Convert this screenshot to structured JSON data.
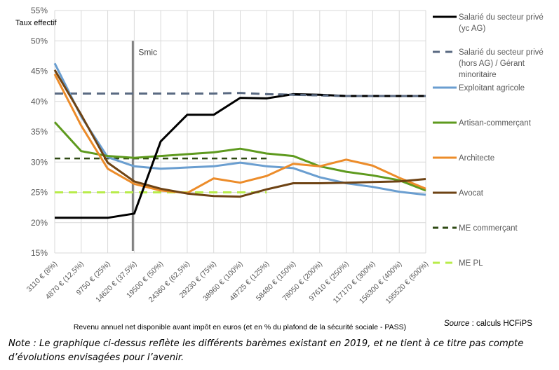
{
  "chart_data": {
    "type": "line",
    "title": "",
    "ylabel": "Taux effectif",
    "xlabel": "Revenu annuel net disponible avant impôt en euros (et en % du plafond de la sécurité sociale - PASS)",
    "ylim": [
      15,
      55
    ],
    "yticks": [
      15,
      20,
      25,
      30,
      35,
      40,
      45,
      50,
      55
    ],
    "ytick_labels": [
      "15%",
      "20%",
      "25%",
      "30%",
      "35%",
      "40%",
      "45%",
      "50%",
      "55%"
    ],
    "grid": true,
    "legend_position": "right",
    "categories": [
      "3110 € (8%)",
      "4870 € (12,5%)",
      "9750 € (25%)",
      "14620 € (37,5%)",
      "19500 € (50%)",
      "24360 € (62,5%)",
      "29230 € (75%)",
      "38960 € (100%)",
      "48725 € (125%)",
      "58480 € (150%)",
      "78050 € (200%)",
      "97610 € (250%)",
      "117170 € (300%)",
      "156300 € (400%)",
      "195520 € (500%)"
    ],
    "annotations": [
      {
        "label": "Smic",
        "category_index": 3,
        "from_value": 15,
        "to_value": 50,
        "color": "#808080"
      }
    ],
    "series": [
      {
        "name": "Salarié du secteur privé (yc AG)",
        "legend_lines": [
          "Salarié du secteur privé",
          "(yc AG)"
        ],
        "color": "#000000",
        "dash": "solid",
        "values": [
          20.8,
          20.8,
          20.8,
          21.5,
          33.4,
          37.8,
          37.8,
          40.6,
          40.5,
          41.2,
          41.1,
          40.9,
          40.9,
          40.9,
          40.9
        ]
      },
      {
        "name": "Salarié du secteur privé (hors AG) / Gérant minoritaire",
        "legend_lines": [
          "Salarié du secteur privé",
          "(hors AG) / Gérant",
          "minoritaire"
        ],
        "color": "#5a6a82",
        "dash": "long",
        "values": [
          41.3,
          41.3,
          41.3,
          41.3,
          41.3,
          41.3,
          41.3,
          41.4,
          41.2,
          41.1,
          41.0,
          40.9,
          40.9,
          40.9,
          40.9
        ]
      },
      {
        "name": "Exploitant agricole",
        "legend_lines": [
          "Exploitant agricole"
        ],
        "color": "#6a9ed0",
        "dash": "solid",
        "values": [
          46.3,
          37.5,
          30.8,
          29.3,
          28.9,
          29.1,
          29.3,
          29.9,
          29.3,
          29.0,
          27.5,
          26.5,
          25.9,
          25.1,
          24.6
        ]
      },
      {
        "name": "Artisan-commerçant",
        "legend_lines": [
          "Artisan-commerçant"
        ],
        "color": "#5e9a1e",
        "dash": "solid",
        "values": [
          36.6,
          31.8,
          31.0,
          30.7,
          31.0,
          31.3,
          31.6,
          32.2,
          31.4,
          31.0,
          29.3,
          28.4,
          27.8,
          27.0,
          25.3
        ]
      },
      {
        "name": "Architecte",
        "legend_lines": [
          "Architecte"
        ],
        "color": "#ec8c2a",
        "dash": "solid",
        "values": [
          44.5,
          36.0,
          28.9,
          26.4,
          25.3,
          24.9,
          27.3,
          26.6,
          27.7,
          29.7,
          29.3,
          30.4,
          29.4,
          27.4,
          25.6
        ]
      },
      {
        "name": "Avocat",
        "legend_lines": [
          "Avocat"
        ],
        "color": "#6e4314",
        "dash": "solid",
        "values": [
          45.2,
          37.8,
          29.9,
          26.8,
          25.6,
          24.8,
          24.4,
          24.3,
          25.5,
          26.5,
          26.5,
          26.6,
          26.7,
          26.8,
          27.2
        ]
      },
      {
        "name": "ME commerçant",
        "legend_lines": [
          "ME commerçant"
        ],
        "color": "#2f4a14",
        "dash": "short",
        "values": [
          30.6,
          30.6,
          30.6,
          30.6,
          30.6,
          30.6,
          30.6,
          30.6,
          30.6,
          null,
          null,
          null,
          null,
          null,
          null
        ]
      },
      {
        "name": "ME PL",
        "legend_lines": [
          "ME PL"
        ],
        "color": "#b8ec4a",
        "dash": "long",
        "values": [
          25.0,
          25.0,
          25.0,
          25.0,
          25.0,
          25.0,
          25.0,
          25.0,
          25.0,
          null,
          null,
          null,
          null,
          null,
          null
        ]
      }
    ]
  },
  "source": {
    "label": "Source",
    "text": " : calculs HCFiPS"
  },
  "note": "Note : Le graphique ci-dessus reflète les différents barèmes existant en 2019, et ne tient à ce titre pas compte d’évolutions envisagées pour l’avenir."
}
